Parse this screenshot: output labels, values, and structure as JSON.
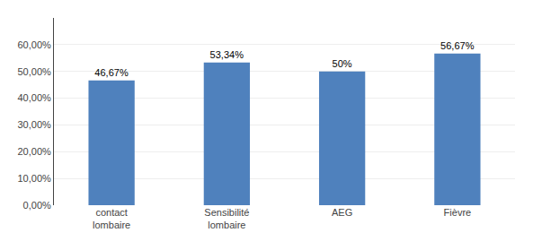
{
  "chart_data": {
    "type": "bar",
    "categories": [
      "contact\nlombaire",
      "Sensibilité\nlombaire",
      "AEG",
      "Fièvre"
    ],
    "values": [
      0.4667,
      0.5334,
      0.5,
      0.5667
    ],
    "value_labels": [
      "46,67%",
      "53,34%",
      "50%",
      "56,67%"
    ],
    "data_labels": true,
    "color": "#4f81bd",
    "ylim": [
      0,
      0.7
    ],
    "yticks": [
      {
        "value": 0.0,
        "label": "0,00%"
      },
      {
        "value": 0.1,
        "label": "10,00%"
      },
      {
        "value": 0.2,
        "label": "20,00%"
      },
      {
        "value": 0.3,
        "label": "30,00%"
      },
      {
        "value": 0.4,
        "label": "40,00%"
      },
      {
        "value": 0.5,
        "label": "50,00%"
      },
      {
        "value": 0.6,
        "label": "60,00%"
      }
    ],
    "grid": true
  }
}
